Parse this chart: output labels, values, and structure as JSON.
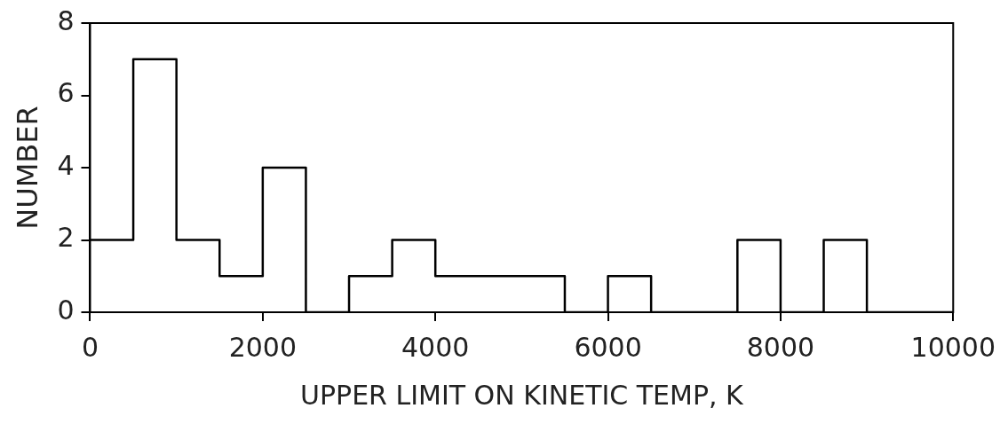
{
  "chart_data": {
    "type": "histogram",
    "xlabel": "UPPER LIMIT ON KINETIC TEMP, K",
    "ylabel": "NUMBER",
    "bins": [
      0,
      500,
      1000,
      1500,
      2000,
      2500,
      3000,
      3500,
      4000,
      4500,
      5000,
      5500,
      6000,
      6500,
      7000,
      7500,
      8000,
      8500,
      9000,
      9500,
      10000
    ],
    "values": [
      2,
      7,
      2,
      1,
      4,
      0,
      1,
      2,
      1,
      1,
      1,
      0,
      1,
      0,
      0,
      2,
      0,
      2,
      0,
      0
    ],
    "color": "#000000",
    "xlim": [
      0,
      10000
    ],
    "xticks": [
      0,
      2000,
      4000,
      6000,
      8000,
      10000
    ],
    "ylim": [
      0,
      8
    ],
    "yticks": [
      0,
      2,
      4,
      6,
      8
    ],
    "grid": false,
    "legend": false
  }
}
